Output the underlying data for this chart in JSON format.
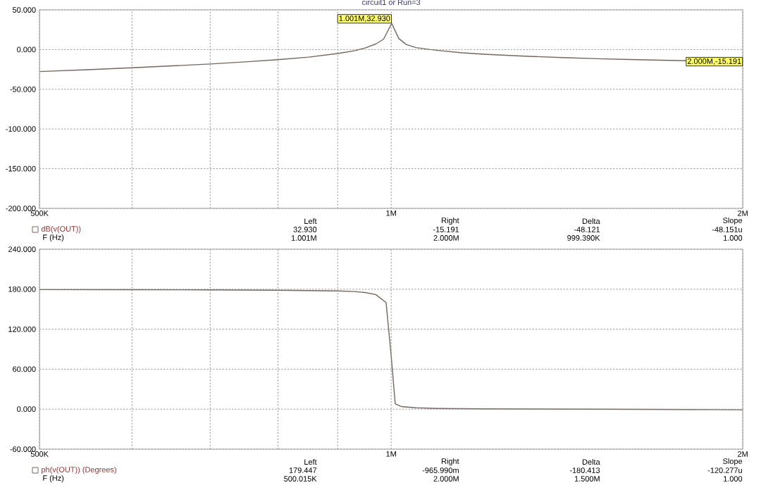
{
  "chart_data": [
    {
      "type": "line",
      "title": "circuit1 or Run=3",
      "log": "x",
      "grid": true,
      "legend": "bottom",
      "xlim": [
        500000,
        2000000
      ],
      "xticks": [
        {
          "value": 500000,
          "label": "500K"
        },
        {
          "value": 600000,
          "label": null
        },
        {
          "value": 700000,
          "label": null
        },
        {
          "value": 800000,
          "label": null
        },
        {
          "value": 900000,
          "label": null
        },
        {
          "value": 1000000,
          "label": "1M"
        },
        {
          "value": 2000000,
          "label": "2M"
        }
      ],
      "ylim": [
        -200,
        50
      ],
      "yticks": [
        {
          "value": -200,
          "label": "-200.000"
        },
        {
          "value": -150,
          "label": "-150.000"
        },
        {
          "value": -100,
          "label": "-100.000"
        },
        {
          "value": -50,
          "label": "-50.000"
        },
        {
          "value": 0,
          "label": "0.000"
        },
        {
          "value": 50,
          "label": "50.000"
        }
      ],
      "series": [
        {
          "name": "dB(v(OUT))",
          "color": "#74665c",
          "x": [
            500000,
            550000,
            600000,
            650000,
            700000,
            750000,
            800000,
            850000,
            900000,
            930000,
            950000,
            970000,
            985000,
            1001000,
            1015000,
            1030000,
            1050000,
            1080000,
            1100000,
            1150000,
            1200000,
            1300000,
            1400000,
            1500000,
            1600000,
            1700000,
            1800000,
            1900000,
            2000000
          ],
          "values": [
            -27.7,
            -25.3,
            -22.9,
            -20.5,
            -18.1,
            -15.5,
            -12.7,
            -9.5,
            -5,
            -1.5,
            2,
            7,
            13,
            32.93,
            14,
            6.5,
            2.5,
            0,
            -1.3,
            -4,
            -5.8,
            -8.3,
            -10,
            -11.5,
            -12.5,
            -13.4,
            -14.1,
            -14.7,
            -15.191
          ]
        }
      ],
      "annotations": [
        {
          "text": "1.001M,32.930",
          "x": 1001000,
          "y": 32.93
        },
        {
          "text": "2.000M,-15.191",
          "x": 2000000,
          "y": -15.191
        },
        "Left",
        "Right",
        "Delta",
        "Slope",
        "32.930",
        "-15.191",
        "-48.121",
        "-48.151u",
        "F (Hz)",
        "1.001M",
        "2.000M",
        "999.390K",
        "1.000"
      ]
    },
    {
      "type": "line",
      "log": "x",
      "grid": true,
      "legend": "bottom",
      "xlim": [
        500000,
        2000000
      ],
      "xticks": [
        {
          "value": 500000,
          "label": "500K"
        },
        {
          "value": 600000,
          "label": null
        },
        {
          "value": 700000,
          "label": null
        },
        {
          "value": 800000,
          "label": null
        },
        {
          "value": 900000,
          "label": null
        },
        {
          "value": 1000000,
          "label": "1M"
        },
        {
          "value": 2000000,
          "label": "2M"
        }
      ],
      "ylim": [
        -60,
        240
      ],
      "yticks": [
        {
          "value": -60,
          "label": "-60.000"
        },
        {
          "value": 0,
          "label": "0.000"
        },
        {
          "value": 60,
          "label": "60.000"
        },
        {
          "value": 120,
          "label": "120.000"
        },
        {
          "value": 180,
          "label": "180.000"
        },
        {
          "value": 240,
          "label": "240.000"
        }
      ],
      "series": [
        {
          "name": "ph(v(OUT)) (Degrees)",
          "color": "#74665c",
          "x": [
            500000,
            600000,
            700000,
            800000,
            850000,
            900000,
            930000,
            950000,
            970000,
            990000,
            1000000,
            1008000,
            1020000,
            1050000,
            1100000,
            1200000,
            1500000,
            1800000,
            2000000
          ],
          "values": [
            179.4,
            179.3,
            179,
            178.5,
            178,
            177.5,
            176.5,
            175,
            172,
            160,
            80,
            8,
            4,
            2,
            1,
            0.5,
            0,
            -0.5,
            -0.966
          ]
        }
      ],
      "annotations": [
        "Left",
        "Right",
        "Delta",
        "Slope",
        "179.447",
        "-965.990m",
        "-180.413",
        "-120.277u",
        "F (Hz)",
        "500.015K",
        "2.000M",
        "1.500M",
        "1.000"
      ]
    }
  ]
}
